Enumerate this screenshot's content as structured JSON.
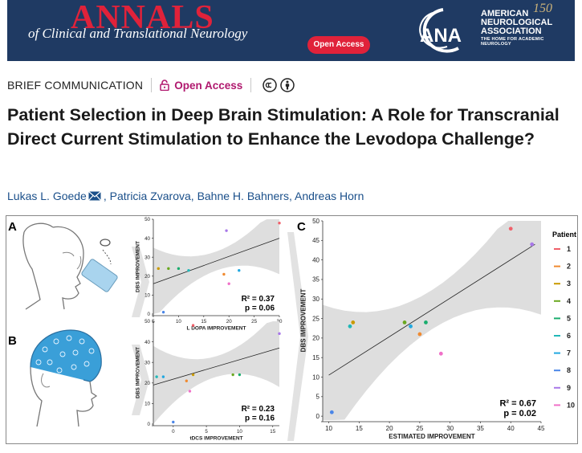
{
  "banner": {
    "journal": "ANNALS",
    "subtitle": "of Clinical and Translational Neurology",
    "open_access_pill": "Open Access",
    "society_abbr": "ANA",
    "society_name_1": "AMERICAN",
    "society_name_2": "NEUROLOGICAL",
    "society_name_3": "ASSOCIATION",
    "society_tagline": "THE HOME FOR ACADEMIC NEUROLOGY",
    "years": "150"
  },
  "meta": {
    "article_type": "BRIEF COMMUNICATION",
    "open_access": "Open Access"
  },
  "article": {
    "title": "Patient Selection in Deep Brain Stimulation: A Role for Transcranial Direct Current Stimulation to Enhance the Levodopa Challenge?"
  },
  "authors": {
    "a1": "Lukas L. Goede",
    "a2": ", Patricia Zvarova, Bahne H. Bahners, Andreas Horn"
  },
  "figure": {
    "panel_a": "A",
    "panel_b": "B",
    "panel_c": "C",
    "legend_title": "Patient",
    "patients": [
      {
        "id": "1",
        "color": "#f0606a"
      },
      {
        "id": "2",
        "color": "#f08a30"
      },
      {
        "id": "3",
        "color": "#c99a00"
      },
      {
        "id": "4",
        "color": "#6aa820"
      },
      {
        "id": "5",
        "color": "#1aad6e"
      },
      {
        "id": "6",
        "color": "#22b8b8"
      },
      {
        "id": "7",
        "color": "#22a8e0"
      },
      {
        "id": "8",
        "color": "#4a86e8"
      },
      {
        "id": "9",
        "color": "#a878e8"
      },
      {
        "id": "10",
        "color": "#f070c8"
      }
    ]
  },
  "chart_data": [
    {
      "type": "scatter",
      "panel": "A",
      "xlabel": "L DOPA IMPROVEMENT",
      "ylabel": "DBS IMPROVEMENT",
      "xlim": [
        5,
        30
      ],
      "ylim": [
        0,
        50
      ],
      "xticks": [
        5,
        10,
        15,
        20,
        25,
        30
      ],
      "yticks": [
        0,
        10,
        20,
        30,
        40,
        50
      ],
      "points": [
        {
          "patient": "1",
          "x": 30,
          "y": 48
        },
        {
          "patient": "2",
          "x": 19,
          "y": 21
        },
        {
          "patient": "3",
          "x": 6,
          "y": 24
        },
        {
          "patient": "4",
          "x": 8,
          "y": 24
        },
        {
          "patient": "5",
          "x": 10,
          "y": 24
        },
        {
          "patient": "6",
          "x": 12,
          "y": 23
        },
        {
          "patient": "7",
          "x": 22,
          "y": 23
        },
        {
          "patient": "8",
          "x": 7,
          "y": 1
        },
        {
          "patient": "9",
          "x": 19.5,
          "y": 44
        },
        {
          "patient": "10",
          "x": 20,
          "y": 16
        }
      ],
      "fit": {
        "x0": 5,
        "y0": 16,
        "x1": 30,
        "y1": 40
      },
      "stat1": "R² = 0.37",
      "stat2": "p = 0.06"
    },
    {
      "type": "scatter",
      "panel": "B",
      "xlabel": "tDCS IMPROVEMENT",
      "ylabel": "DBS IMPROVEMENT",
      "xlim": [
        -3,
        16
      ],
      "ylim": [
        0,
        50
      ],
      "xticks": [
        0,
        5,
        10,
        15
      ],
      "yticks": [
        0,
        10,
        20,
        30,
        40,
        50
      ],
      "points": [
        {
          "patient": "1",
          "x": 3,
          "y": 48
        },
        {
          "patient": "2",
          "x": 2,
          "y": 21
        },
        {
          "patient": "3",
          "x": 3,
          "y": 24
        },
        {
          "patient": "4",
          "x": 9,
          "y": 24
        },
        {
          "patient": "5",
          "x": 10,
          "y": 24
        },
        {
          "patient": "6",
          "x": -2.5,
          "y": 23
        },
        {
          "patient": "7",
          "x": -1.5,
          "y": 23
        },
        {
          "patient": "8",
          "x": 0,
          "y": 1
        },
        {
          "patient": "9",
          "x": 16,
          "y": 44
        },
        {
          "patient": "10",
          "x": 2.5,
          "y": 16
        }
      ],
      "fit": {
        "x0": -3,
        "y0": 19,
        "x1": 16,
        "y1": 37
      },
      "stat1": "R² = 0.23",
      "stat2": "p = 0.16"
    },
    {
      "type": "scatter",
      "panel": "C",
      "xlabel": "ESTIMATED IMPROVEMENT",
      "ylabel": "DBS IMPROVEMENT",
      "xlim": [
        9,
        45
      ],
      "ylim": [
        -1,
        50
      ],
      "xticks": [
        10,
        15,
        20,
        25,
        30,
        35,
        40,
        45
      ],
      "yticks": [
        0,
        5,
        10,
        15,
        20,
        25,
        30,
        35,
        40,
        45,
        50
      ],
      "points": [
        {
          "patient": "1",
          "x": 40,
          "y": 48
        },
        {
          "patient": "2",
          "x": 25,
          "y": 21
        },
        {
          "patient": "3",
          "x": 14,
          "y": 24
        },
        {
          "patient": "4",
          "x": 22.5,
          "y": 24
        },
        {
          "patient": "5",
          "x": 26,
          "y": 24
        },
        {
          "patient": "6",
          "x": 13.5,
          "y": 23
        },
        {
          "patient": "7",
          "x": 23.5,
          "y": 23
        },
        {
          "patient": "8",
          "x": 10.5,
          "y": 1
        },
        {
          "patient": "9",
          "x": 43.5,
          "y": 44
        },
        {
          "patient": "10",
          "x": 28.5,
          "y": 16
        }
      ],
      "fit": {
        "x0": 10,
        "y0": 10.5,
        "x1": 44,
        "y1": 44
      },
      "stat1": "R² = 0.67",
      "stat2": "p = 0.02"
    }
  ]
}
